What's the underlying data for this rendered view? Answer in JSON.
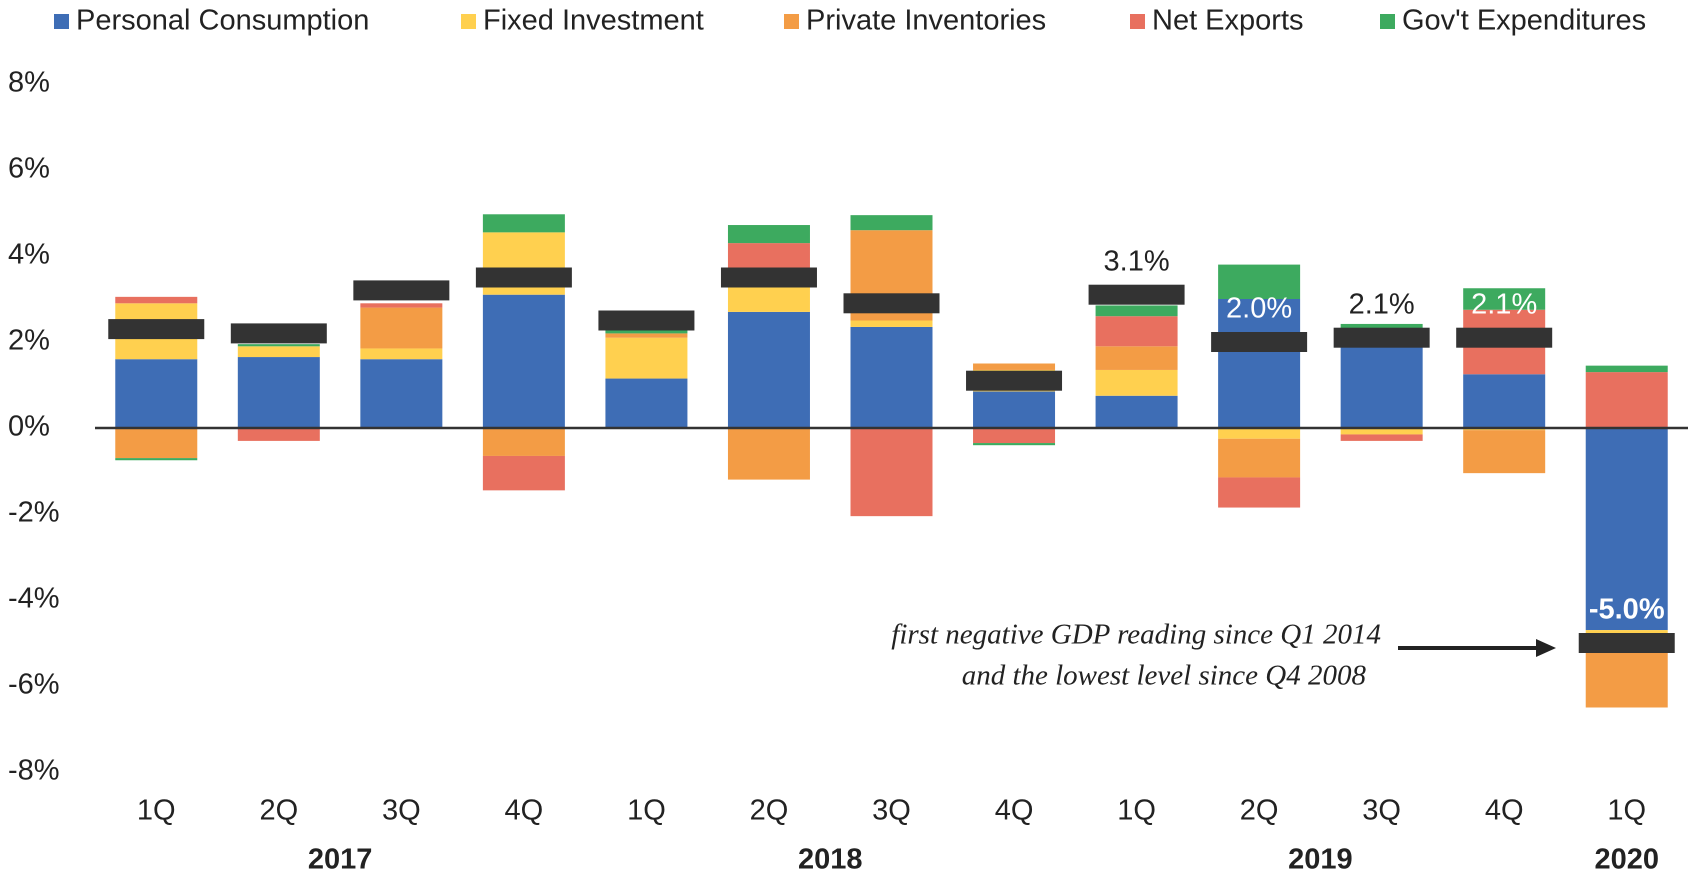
{
  "chart_data": {
    "type": "stacked_bar",
    "categories": [
      "1Q",
      "2Q",
      "3Q",
      "4Q",
      "1Q",
      "2Q",
      "3Q",
      "4Q",
      "1Q",
      "2Q",
      "3Q",
      "4Q",
      "1Q"
    ],
    "groups": [
      {
        "label": "2017",
        "count": 4
      },
      {
        "label": "2018",
        "count": 4
      },
      {
        "label": "2019",
        "count": 4
      },
      {
        "label": "2020",
        "count": 1
      }
    ],
    "series": [
      {
        "name": "Personal Consumption",
        "color": "#3e6db5",
        "values": [
          1.6,
          1.65,
          1.6,
          3.1,
          1.15,
          2.7,
          2.35,
          0.85,
          0.75,
          3.0,
          2.3,
          1.25,
          -4.7
        ]
      },
      {
        "name": "Fixed Investment",
        "color": "#ffd04f",
        "values": [
          1.3,
          0.25,
          0.25,
          1.45,
          0.95,
          0.9,
          0.15,
          0.5,
          0.6,
          -0.25,
          -0.15,
          -0.05,
          -0.1
        ]
      },
      {
        "name": "Private Inventories",
        "color": "#f39c45",
        "values": [
          -0.7,
          0,
          0.95,
          -0.65,
          0.1,
          -1.2,
          2.1,
          0.15,
          0.55,
          -0.9,
          0,
          -1.0,
          -1.7
        ]
      },
      {
        "name": "Net Exports",
        "color": "#e8705f",
        "values": [
          0.15,
          -0.3,
          0.1,
          -0.8,
          0,
          0.7,
          -2.05,
          -0.35,
          0.7,
          -0.7,
          -0.15,
          1.5,
          1.3
        ]
      },
      {
        "name": "Gov't Expenditures",
        "color": "#3daa5f",
        "values": [
          -0.05,
          0.05,
          0,
          0.42,
          0.1,
          0.42,
          0.35,
          -0.05,
          0.25,
          0.8,
          0.12,
          0.5,
          0.15
        ]
      }
    ],
    "gdp": {
      "color": "#333333",
      "values": [
        2.3,
        2.2,
        3.2,
        3.5,
        2.5,
        3.5,
        2.9,
        1.1,
        3.1,
        2.0,
        2.1,
        2.1,
        -5.0
      ],
      "value_labels": [
        null,
        null,
        null,
        null,
        null,
        null,
        null,
        null,
        "3.1%",
        "2.0%",
        "2.1%",
        "2.1%",
        "-5.0%"
      ]
    },
    "ylim": [
      -8,
      8
    ],
    "yticks": [
      {
        "value": -8,
        "label": "-8%"
      },
      {
        "value": -6,
        "label": "-6%"
      },
      {
        "value": -4,
        "label": "-4%"
      },
      {
        "value": -2,
        "label": "-2%"
      },
      {
        "value": 0,
        "label": "0%"
      },
      {
        "value": 2,
        "label": "2%"
      },
      {
        "value": 4,
        "label": "4%"
      },
      {
        "value": 6,
        "label": "6%"
      },
      {
        "value": 8,
        "label": "8%"
      }
    ],
    "annotation": [
      "first negative GDP reading since Q1 2014",
      "and the lowest level since Q4 2008"
    ]
  }
}
